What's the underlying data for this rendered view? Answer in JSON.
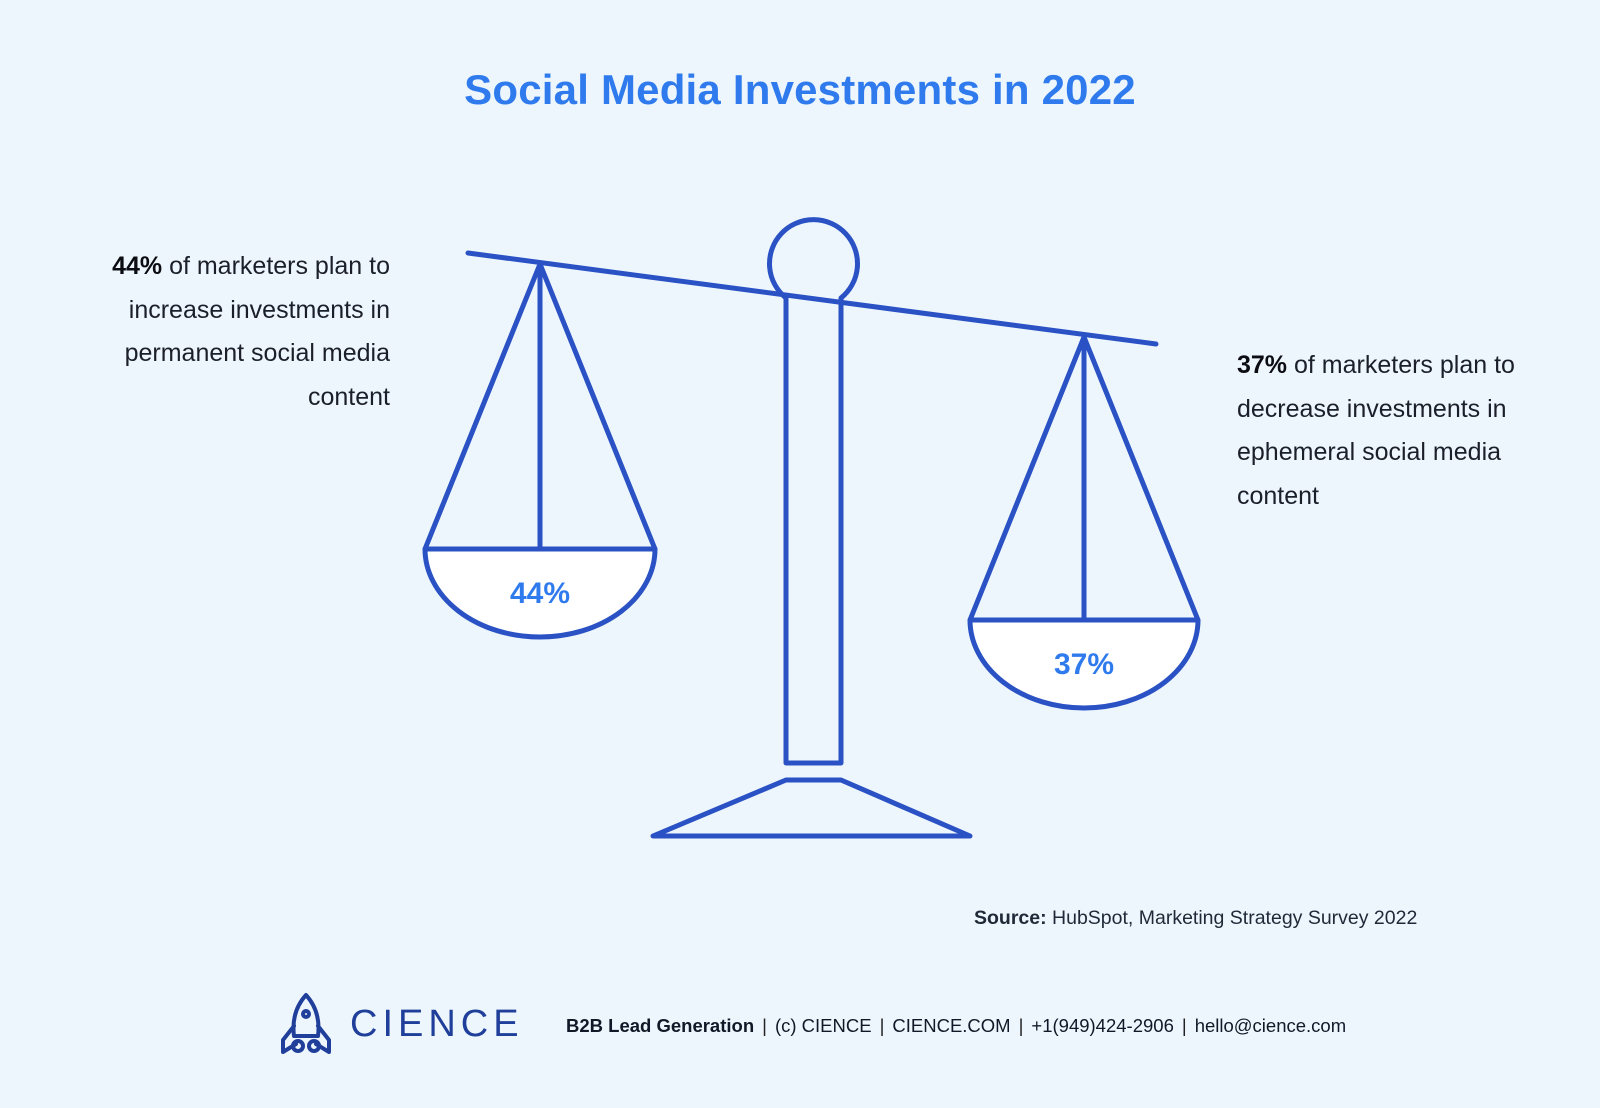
{
  "title": "Social Media Investments in 2022",
  "left_stat": {
    "percent": "44%",
    "text": "of marketers plan to increase investments in permanent social media content"
  },
  "right_stat": {
    "percent": "37%",
    "text": "of marketers plan to decrease investments in ephemeral social media content"
  },
  "pans": {
    "left_label": "44%",
    "right_label": "37%"
  },
  "source": {
    "label": "Source:",
    "text": "HubSpot, Marketing Strategy Survey 2022"
  },
  "footer": {
    "brand": "CIENCE",
    "tagline": "B2B Lead Generation",
    "items": [
      "(c) CIENCE",
      "CIENCE.COM",
      "+1(949)424-2906",
      "hello@cience.com"
    ]
  },
  "colors": {
    "accent": "#2f7bee",
    "line": "#2a52c4",
    "background": "#eef6fd",
    "brand": "#1f3f9a"
  }
}
